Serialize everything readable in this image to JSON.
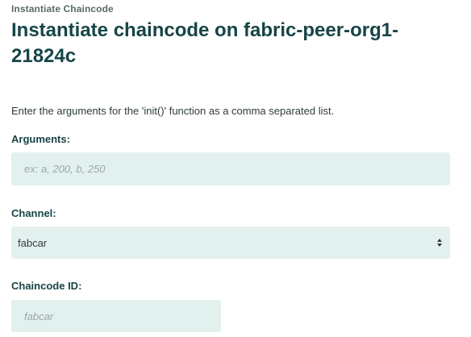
{
  "breadcrumb": "Instantiate Chaincode",
  "title": "Instantiate chaincode on fabric-peer-org1-21824c",
  "intro": "Enter the arguments for the 'init()' function as a comma separated list.",
  "arguments": {
    "label": "Arguments:",
    "value": "",
    "placeholder": "ex: a, 200, b, 250"
  },
  "channel": {
    "label": "Channel:",
    "selected": "fabcar",
    "icon": "select-arrows-icon"
  },
  "chaincode_id": {
    "label": "Chaincode ID:",
    "value": "",
    "placeholder": "fabcar"
  },
  "colors": {
    "title": "#174546",
    "field_background": "#e2f0ee",
    "placeholder": "#9aa8a7"
  }
}
